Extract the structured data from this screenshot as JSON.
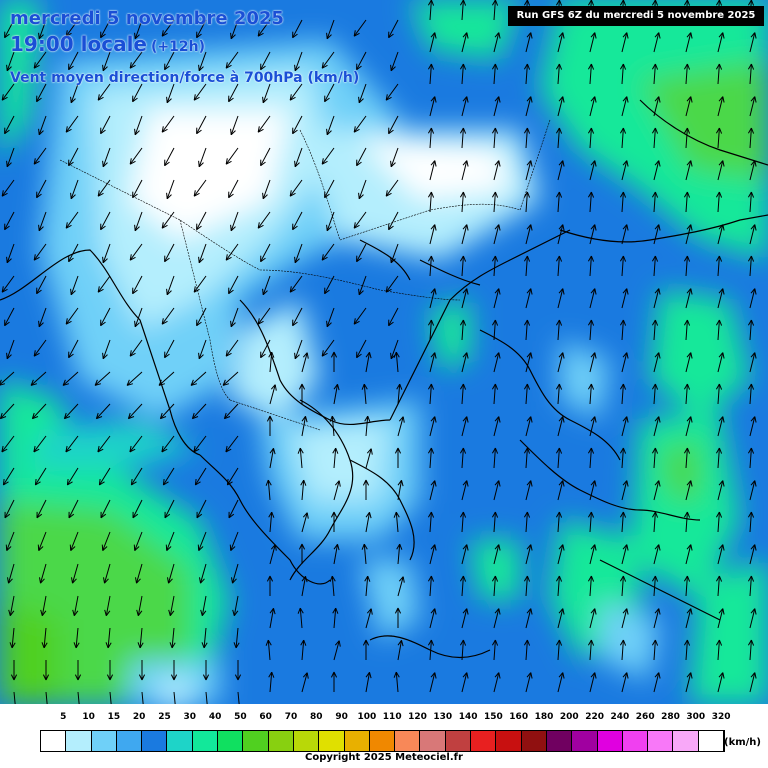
{
  "header": {
    "date": "mercredi 5 novembre 2025",
    "time": "19:00 locale",
    "offset": "(+12h)",
    "parameter": "Vent moyen direction/force à 700hPa (km/h)",
    "run": "Run GFS 6Z du mercredi 5 novembre 2025"
  },
  "legend": {
    "labels": [
      "5",
      "10",
      "15",
      "20",
      "25",
      "30",
      "40",
      "50",
      "60",
      "70",
      "80",
      "90",
      "100",
      "110",
      "120",
      "130",
      "140",
      "150",
      "160",
      "180",
      "200",
      "220",
      "240",
      "260",
      "280",
      "300",
      "320"
    ],
    "colors": [
      "#ffffff",
      "#b4eefd",
      "#6fd0f8",
      "#3fa8f0",
      "#1a7ae0",
      "#1ed4c8",
      "#12e89a",
      "#10e060",
      "#50d020",
      "#88d010",
      "#b8d808",
      "#e0e000",
      "#e8b000",
      "#f08800",
      "#f88858",
      "#d87878",
      "#c04040",
      "#e82020",
      "#c81010",
      "#901010",
      "#700060",
      "#a000a0",
      "#e000e0",
      "#f040f0",
      "#f878f8",
      "#f8a8f8",
      "#ffffff"
    ],
    "unit": "(km/h)"
  },
  "copyright": "Copyright 2025 Meteociel.fr",
  "map": {
    "ocean_color": "#1a7ae0",
    "calm_color": "#ffffff",
    "light_color": "#b4eefd",
    "moderate_color": "#6fd0f8",
    "teal_color": "#1ed4c8",
    "green_color": "#12e89a",
    "strong_green_color": "#4bd84a"
  }
}
